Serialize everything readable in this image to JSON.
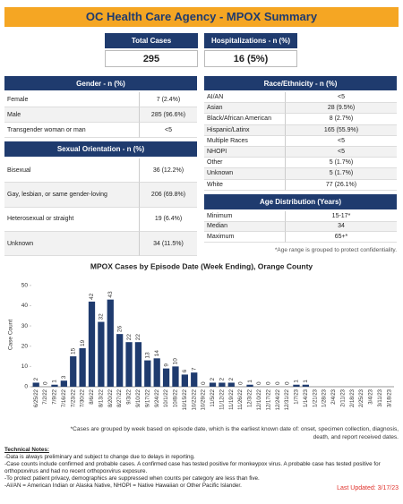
{
  "header": {
    "title": "OC Health Care Agency - MPOX Summary"
  },
  "kpis": [
    {
      "label": "Total Cases",
      "value": "295"
    },
    {
      "label": "Hospitalizations - n (%)",
      "value": "16 (5%)"
    }
  ],
  "tables": [
    {
      "title": "Gender - n (%)",
      "rows": [
        [
          "Female",
          "7 (2.4%)"
        ],
        [
          "Male",
          "285 (96.6%)"
        ],
        [
          "Transgender woman or man",
          "<5"
        ]
      ]
    },
    {
      "title": "Sexual Orientation - n (%)",
      "rows": [
        [
          "Bisexual",
          "36 (12.2%)"
        ],
        [
          "Gay, lesbian, or same gender-loving",
          "206 (69.8%)"
        ],
        [
          "Heterosexual or straight",
          "19 (6.4%)"
        ],
        [
          "Unknown",
          "34 (11.5%)"
        ]
      ]
    },
    {
      "title": "Race/Ethnicity - n (%)",
      "rows": [
        [
          "AI/AN",
          "<5"
        ],
        [
          "Asian",
          "28 (9.5%)"
        ],
        [
          "Black/African American",
          "8 (2.7%)"
        ],
        [
          "Hispanic/Latinx",
          "165 (55.9%)"
        ],
        [
          "Multiple Races",
          "<5"
        ],
        [
          "NHOPI",
          "<5"
        ],
        [
          "Other",
          "5 (1.7%)"
        ],
        [
          "Unknown",
          "5 (1.7%)"
        ],
        [
          "White",
          "77 (26.1%)"
        ]
      ]
    },
    {
      "title": "Age Distribution (Years)",
      "rows": [
        [
          "Minimum",
          "15-17*"
        ],
        [
          "Median",
          "34"
        ],
        [
          "Maximum",
          "65+*"
        ]
      ]
    }
  ],
  "age_note": "*Age range is grouped to protect confidentiality.",
  "chart_data": {
    "type": "bar",
    "title": "MPOX Cases by Episode Date (Week Ending),  Orange County",
    "y_label": "Case Count",
    "categories": [
      "6/25/22",
      "7/2/22",
      "7/9/22",
      "7/16/22",
      "7/23/22",
      "7/30/22",
      "8/6/22",
      "8/13/22",
      "8/20/22",
      "8/27/22",
      "9/3/22",
      "9/10/22",
      "9/17/22",
      "9/24/22",
      "10/1/22",
      "10/8/22",
      "10/15/22",
      "10/22/22",
      "10/29/22",
      "11/5/22",
      "11/12/22",
      "11/19/22",
      "11/26/22",
      "12/3/22",
      "12/10/22",
      "12/17/22",
      "12/24/22",
      "12/31/22",
      "1/7/23",
      "1/14/23",
      "1/21/23",
      "1/28/23",
      "2/4/23",
      "2/11/23",
      "2/18/23",
      "2/25/23",
      "3/4/23",
      "3/11/23",
      "3/18/23"
    ],
    "values": [
      2,
      0,
      1,
      3,
      15,
      19,
      42,
      32,
      43,
      26,
      22,
      22,
      13,
      14,
      9,
      10,
      6,
      7,
      0,
      2,
      2,
      2,
      0,
      1,
      0,
      0,
      0,
      0,
      1,
      1,
      null,
      null,
      null,
      null,
      null,
      null,
      null,
      null,
      null
    ],
    "color": "#1f3b6e",
    "ylim": [
      0,
      53
    ],
    "yticks": [
      0,
      10,
      20,
      30,
      40,
      50
    ],
    "grid": false,
    "footnote": "*Cases are grouped by week based on episode date, which is the earliest known date of: onset, specimen collection, diagnosis, death, and report received dates."
  },
  "notes": {
    "title": "Technical Notes:",
    "lines": [
      "-Data is always preliminary and subject to change due to delays in reporting.",
      "-Case counts include confirmed and probable cases. A confirmed case has tested positive for monkeypox virus. A probable case has tested positive for orthopoxvirus and had no recent orthopoxvirus exposure.",
      "-To protect patient privacy, demographics are suppressed when counts per category are less than five.",
      "-AI/AN = American Indian or Alaska Native, NHOPI = Native Hawaiian or Other Pacific Islander."
    ],
    "last_updated": "Last Updated: 3/17/23"
  }
}
